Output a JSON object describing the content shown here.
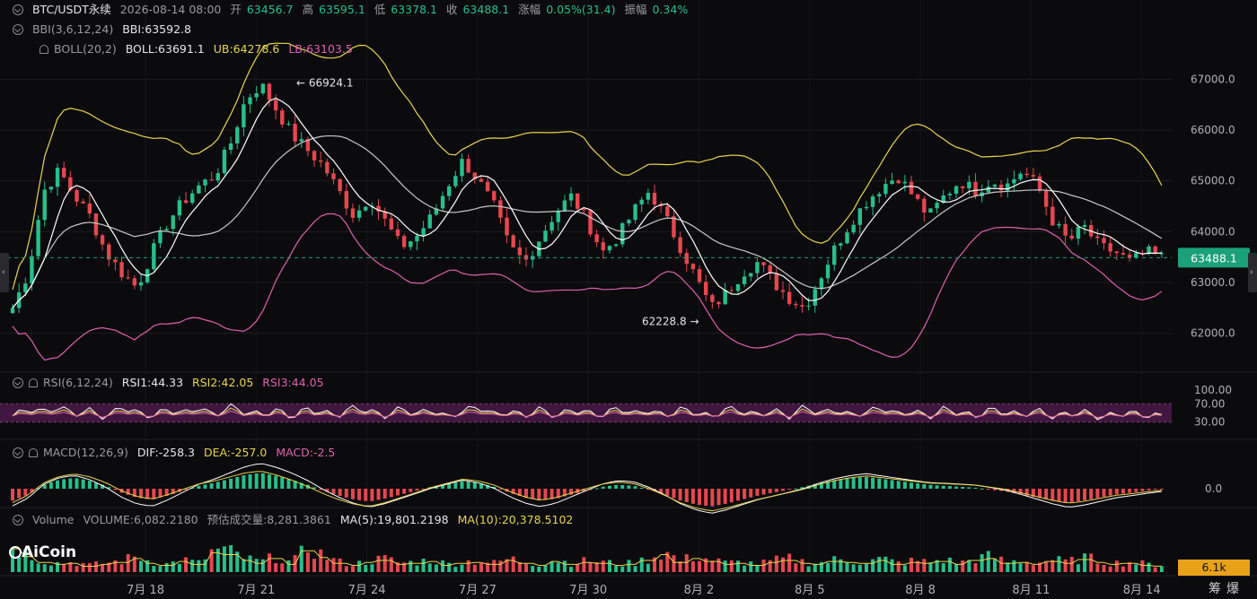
{
  "header": {
    "symbol": "BTC/USDT永续",
    "datetime": "2026-08-14 08:00",
    "open_label": "开",
    "open": "63456.7",
    "high_label": "高",
    "high": "63595.1",
    "low_label": "低",
    "low": "63378.1",
    "close_label": "收",
    "close": "63488.1",
    "change_label": "涨幅",
    "change": "0.05%(31.4)",
    "amplitude_label": "振幅",
    "amplitude": "0.34%"
  },
  "indicators": {
    "bbi": {
      "name": "BBI(3,6,12,24)",
      "value": "BBI:63592.8"
    },
    "boll": {
      "name": "BOLL(20,2)",
      "mid": "BOLL:63691.1",
      "ub": "UB:64278.6",
      "lb": "LB:63103.5"
    },
    "rsi": {
      "name": "RSI(6,12,24)",
      "rsi1": "RSI1:44.33",
      "rsi2": "RSI2:42.05",
      "rsi3": "RSI3:44.05"
    },
    "macd": {
      "name": "MACD(12,26,9)",
      "dif": "DIF:-258.3",
      "dea": "DEA:-257.0",
      "macd": "MACD:-2.5"
    },
    "volume": {
      "name": "Volume",
      "volume": "VOLUME:6,082.2180",
      "estimate": "预估成交量:8,281.3861",
      "ma5": "MA(5):19,801.2198",
      "ma10": "MA(10):20,378.5102"
    }
  },
  "colors": {
    "up": "#26c08a",
    "down": "#e6474f",
    "bbi": "#ffffff",
    "boll_mid": "#c8c8c8",
    "boll_ub": "#e8d44d",
    "boll_lb": "#e060b0",
    "rsi_band": "#4a1a4a",
    "price_tag": "#1aa07a",
    "vol_tag": "#e8a21a"
  },
  "brand": {
    "logo_text": "AiCoin",
    "logo_icon": "aicoin-logo-icon"
  },
  "footer_buttons": [
    "筹",
    "爆"
  ],
  "chart_data": {
    "type": "candlestick",
    "price_axis_ticks": [
      62000,
      63000,
      64000,
      65000,
      66000,
      67000
    ],
    "price_axis_labels": [
      "62000.0",
      "63000.0",
      "64000.0",
      "65000.0",
      "66000.0",
      "67000.0"
    ],
    "ylim": [
      61500,
      67500
    ],
    "current_price": 63488.1,
    "current_price_label": "63488.1",
    "max_annotation": {
      "value": 66924.1,
      "label": "66924.1"
    },
    "min_annotation": {
      "value": 62228.8,
      "label": "62228.8"
    },
    "x_labels": [
      "7月 18",
      "7月 21",
      "7月 24",
      "7月 27",
      "7月 30",
      "8月 2",
      "8月 5",
      "8月 8",
      "8月 11",
      "8月 14"
    ],
    "rsi_axis_labels": [
      "100.00",
      "70.00",
      "30.00"
    ],
    "rsi_ylim": [
      0,
      100
    ],
    "macd_axis_labels": [
      "0.0"
    ],
    "volume_axis_label": "6.1k",
    "close_path": [
      62500,
      63200,
      64800,
      65200,
      64700,
      64300,
      63600,
      63200,
      62900,
      63600,
      64200,
      64600,
      64900,
      65100,
      65700,
      66600,
      66900,
      66400,
      65900,
      65600,
      65300,
      64800,
      64300,
      64700,
      64200,
      63700,
      63900,
      64300,
      64900,
      65400,
      65000,
      64500,
      63700,
      63400,
      63900,
      64400,
      64700,
      64200,
      63600,
      63900,
      64400,
      64800,
      64300,
      63700,
      63100,
      62500,
      62800,
      63200,
      63400,
      63000,
      62700,
      62500,
      63100,
      63700,
      64200,
      64600,
      64900,
      65100,
      64700,
      64300,
      64700,
      65000,
      64800,
      65000,
      64900,
      65200,
      64900,
      64200,
      63800,
      64100,
      63700,
      63600,
      63400,
      63600,
      63488
    ],
    "rsi1_path": [
      44,
      58,
      52,
      61,
      48,
      55,
      40,
      62,
      50,
      44,
      57,
      49,
      60,
      45,
      63,
      51,
      47,
      55,
      42,
      58,
      50,
      46,
      61,
      53,
      44,
      59,
      48,
      56,
      41,
      54,
      62,
      47,
      52,
      45,
      58,
      43,
      56,
      50,
      46,
      60,
      48,
      55,
      44,
      57,
      51,
      42,
      59,
      53,
      46,
      55,
      43,
      62,
      49,
      56,
      45,
      52,
      60,
      47,
      54,
      42,
      58,
      50,
      44,
      57,
      51,
      46,
      55,
      43,
      48,
      52,
      41,
      47,
      50,
      45,
      44.33
    ],
    "macd_hist": [
      -120,
      -60,
      40,
      90,
      110,
      80,
      30,
      -40,
      -90,
      -110,
      -70,
      -20,
      30,
      60,
      100,
      140,
      160,
      130,
      90,
      40,
      -20,
      -70,
      -110,
      -130,
      -100,
      -60,
      -20,
      20,
      50,
      80,
      60,
      20,
      -40,
      -90,
      -120,
      -100,
      -60,
      -20,
      20,
      40,
      30,
      -10,
      -60,
      -120,
      -160,
      -180,
      -150,
      -110,
      -70,
      -40,
      -10,
      20,
      60,
      90,
      110,
      120,
      100,
      80,
      60,
      40,
      30,
      20,
      10,
      -10,
      -30,
      -60,
      -90,
      -120,
      -140,
      -120,
      -90,
      -60,
      -40,
      -20,
      -2.5
    ],
    "volume_path": [
      24,
      16,
      10,
      8,
      9,
      6,
      8,
      10,
      14,
      9,
      7,
      11,
      8,
      20,
      18,
      12,
      9,
      14,
      8,
      22,
      15,
      9,
      7,
      10,
      12,
      8,
      9,
      11,
      7,
      9,
      10,
      8,
      12,
      9,
      7,
      11,
      8,
      10,
      9,
      7,
      8,
      12,
      18,
      10,
      14,
      11,
      8,
      9,
      7,
      10,
      12,
      9,
      8,
      11,
      10,
      9,
      12,
      8,
      10,
      9,
      11,
      8,
      12,
      14,
      9,
      10,
      8,
      11,
      9,
      13,
      10,
      8,
      9,
      7,
      6.1
    ]
  }
}
